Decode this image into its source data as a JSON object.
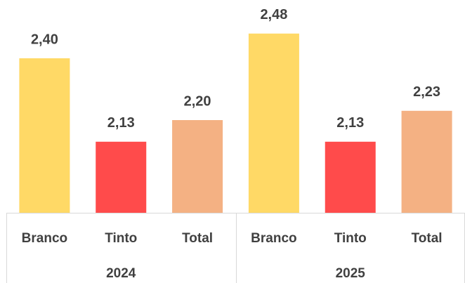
{
  "chart_data": {
    "type": "bar",
    "categories": [
      "Branco",
      "Tinto",
      "Total",
      "Branco",
      "Tinto",
      "Total"
    ],
    "groups": [
      "2024",
      "2025"
    ],
    "values": [
      2.4,
      2.13,
      2.2,
      2.48,
      2.13,
      2.23
    ],
    "value_labels": [
      "2,40",
      "2,13",
      "2,20",
      "2,48",
      "2,13",
      "2,23"
    ],
    "colors": [
      "#FFD966",
      "#FF4B4B",
      "#F4B183",
      "#FFD966",
      "#FF4B4B",
      "#F4B183"
    ],
    "ylim": [
      1.9,
      2.5
    ]
  }
}
